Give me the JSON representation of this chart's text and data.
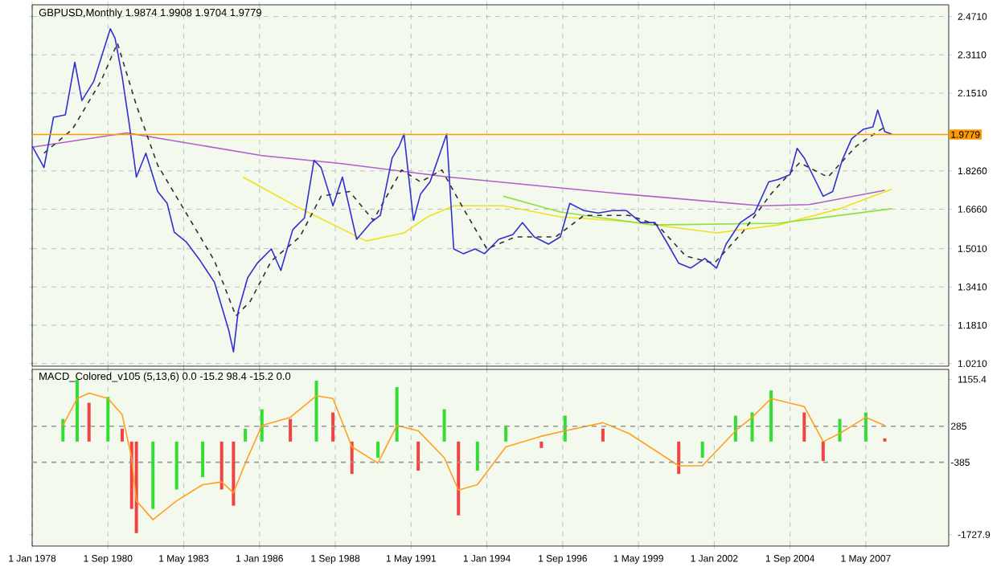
{
  "chart_data": [
    {
      "type": "line",
      "title": "GBPUSD,Monthly  1.9874 1.9908 1.9704 1.9779",
      "xlim": [
        "1978-01",
        "2010-04"
      ],
      "ylim": [
        1.01,
        2.52
      ],
      "xticks": [
        {
          "value": "1978-01",
          "label": null
        },
        {
          "value": "1980-09",
          "label": null
        },
        {
          "value": "1983-05",
          "label": null
        },
        {
          "value": "1986-01",
          "label": null
        },
        {
          "value": "1988-09",
          "label": null
        },
        {
          "value": "1991-05",
          "label": null
        },
        {
          "value": "1994-01",
          "label": null
        },
        {
          "value": "1996-09",
          "label": null
        },
        {
          "value": "1999-05",
          "label": null
        },
        {
          "value": "2002-01",
          "label": null
        },
        {
          "value": "2004-09",
          "label": null
        },
        {
          "value": "2007-05",
          "label": null
        }
      ],
      "yticks": [
        {
          "value": 1.021,
          "label": "1.0210"
        },
        {
          "value": 1.181,
          "label": "1.1810"
        },
        {
          "value": 1.341,
          "label": "1.3410"
        },
        {
          "value": 1.501,
          "label": "1.5010"
        },
        {
          "value": 1.666,
          "label": "1.6660"
        },
        {
          "value": 1.826,
          "label": "1.8260"
        },
        {
          "value": 2.151,
          "label": "2.1510"
        },
        {
          "value": 2.311,
          "label": "2.3110"
        },
        {
          "value": 2.471,
          "label": "2.4710"
        }
      ],
      "tick_labels": "y",
      "grid": true,
      "ref_lines": [
        {
          "axis": "y",
          "value": 1.9779,
          "label": "1.9779",
          "color": "#ff9900"
        }
      ],
      "series": [
        {
          "color": "#b060c8",
          "x": [
            "1978-01",
            "1981-05",
            "1986-02",
            "1988-11",
            "1992-09",
            "1998-10",
            "2003-09",
            "2005-05",
            "2008-01"
          ],
          "values": [
            1.925,
            1.985,
            1.89,
            1.857,
            1.8,
            1.73,
            1.68,
            1.685,
            1.745
          ]
        },
        {
          "color": "#f0e020",
          "x": [
            "1985-06",
            "1987-05",
            "1989-10",
            "1991-02",
            "1991-12",
            "1992-11",
            "1994-08",
            "1996-08",
            "1999-01",
            "2002-02",
            "2004-04",
            "2006-06",
            "2008-04"
          ],
          "values": [
            1.8,
            1.675,
            1.533,
            1.567,
            1.634,
            1.68,
            1.68,
            1.634,
            1.614,
            1.567,
            1.6,
            1.668,
            1.75
          ]
        },
        {
          "color": "#90e040",
          "x": [
            "1994-08",
            "1996-08",
            "1999-11",
            "2004-04",
            "2008-04"
          ],
          "values": [
            1.72,
            1.654,
            1.6,
            1.607,
            1.668
          ]
        },
        {
          "color": "#303030",
          "line_style": "dashed",
          "x": [
            "1978-06",
            "1979-06",
            "1980-06",
            "1981-01",
            "1981-09",
            "1982-06",
            "1983-06",
            "1984-06",
            "1985-03",
            "1985-09",
            "1986-06",
            "1987-06",
            "1988-03",
            "1989-03",
            "1990-01",
            "1991-01",
            "1991-09",
            "1992-06",
            "1993-03",
            "1994-01",
            "1995-01",
            "1996-06",
            "1997-06",
            "1999-01",
            "2000-01",
            "2001-01",
            "2002-01",
            "2003-01",
            "2004-01",
            "2005-01",
            "2006-01",
            "2007-01",
            "2008-01"
          ],
          "values": [
            1.9,
            2.0,
            2.2,
            2.36,
            2.1,
            1.85,
            1.65,
            1.45,
            1.22,
            1.28,
            1.45,
            1.55,
            1.72,
            1.74,
            1.62,
            1.83,
            1.78,
            1.83,
            1.67,
            1.5,
            1.55,
            1.55,
            1.64,
            1.64,
            1.6,
            1.47,
            1.44,
            1.57,
            1.73,
            1.86,
            1.8,
            1.93,
            2.01
          ]
        },
        {
          "color": "#3030d0",
          "x": [
            "1978-01",
            "1978-06",
            "1978-10",
            "1979-03",
            "1979-07",
            "1979-10",
            "1980-03",
            "1980-10",
            "1980-12",
            "1981-03",
            "1981-06",
            "1981-09",
            "1982-01",
            "1982-06",
            "1982-10",
            "1983-01",
            "1983-06",
            "1983-12",
            "1984-06",
            "1984-12",
            "1985-02",
            "1985-04",
            "1985-08",
            "1985-12",
            "1986-06",
            "1986-10",
            "1987-03",
            "1987-08",
            "1987-12",
            "1988-03",
            "1988-08",
            "1988-12",
            "1989-06",
            "1989-12",
            "1990-04",
            "1990-09",
            "1990-12",
            "1991-02",
            "1991-06",
            "1991-09",
            "1992-01",
            "1992-08",
            "1992-11",
            "1993-03",
            "1993-08",
            "1993-12",
            "1994-06",
            "1994-12",
            "1995-04",
            "1995-09",
            "1996-03",
            "1996-08",
            "1996-12",
            "1997-06",
            "1997-12",
            "1998-06",
            "1998-12",
            "1999-06",
            "1999-12",
            "2000-06",
            "2000-10",
            "2001-03",
            "2001-09",
            "2002-02",
            "2002-06",
            "2002-12",
            "2003-06",
            "2003-12",
            "2004-04",
            "2004-09",
            "2004-12",
            "2005-03",
            "2005-08",
            "2005-11",
            "2006-03",
            "2006-07",
            "2006-11",
            "2007-04",
            "2007-08",
            "2007-10",
            "2008-01",
            "2008-04"
          ],
          "values": [
            1.93,
            1.84,
            2.05,
            2.06,
            2.28,
            2.12,
            2.2,
            2.42,
            2.38,
            2.22,
            2.02,
            1.8,
            1.9,
            1.74,
            1.69,
            1.57,
            1.53,
            1.45,
            1.36,
            1.16,
            1.07,
            1.24,
            1.38,
            1.44,
            1.5,
            1.41,
            1.58,
            1.63,
            1.87,
            1.84,
            1.68,
            1.8,
            1.54,
            1.61,
            1.64,
            1.88,
            1.93,
            1.98,
            1.62,
            1.73,
            1.78,
            1.98,
            1.5,
            1.48,
            1.5,
            1.48,
            1.54,
            1.56,
            1.61,
            1.55,
            1.52,
            1.55,
            1.69,
            1.66,
            1.65,
            1.66,
            1.66,
            1.61,
            1.61,
            1.51,
            1.44,
            1.42,
            1.46,
            1.42,
            1.52,
            1.61,
            1.65,
            1.78,
            1.79,
            1.81,
            1.92,
            1.88,
            1.78,
            1.72,
            1.74,
            1.87,
            1.96,
            2.0,
            2.01,
            2.08,
            1.99,
            1.98
          ]
        }
      ]
    },
    {
      "type": "bar",
      "title": "MACD_Colored_v105 (5,13,6) 0.0 -15.2 98.4 -15.2 0.0",
      "xlim": [
        "1978-01",
        "2010-04"
      ],
      "ylim": [
        -1940,
        1340
      ],
      "xticks": [
        {
          "value": "1978-01",
          "label": "1 Jan 1978"
        },
        {
          "value": "1980-09",
          "label": "1 Sep 1980"
        },
        {
          "value": "1983-05",
          "label": "1 May 1983"
        },
        {
          "value": "1986-01",
          "label": "1 Jan 1986"
        },
        {
          "value": "1988-09",
          "label": "1 Sep 1988"
        },
        {
          "value": "1991-05",
          "label": "1 May 1991"
        },
        {
          "value": "1994-01",
          "label": "1 Jan 1994"
        },
        {
          "value": "1996-09",
          "label": "1 Sep 1996"
        },
        {
          "value": "1999-05",
          "label": "1 May 1999"
        },
        {
          "value": "2002-01",
          "label": "1 Jan 2002"
        },
        {
          "value": "2004-09",
          "label": "1 Sep 2004"
        },
        {
          "value": "2007-05",
          "label": "1 May 2007"
        }
      ],
      "yticks": [
        1155.4,
        -1727.9
      ],
      "grid": "x",
      "ref_lines": [
        {
          "axis": "y",
          "value": 285,
          "label": "285",
          "color": "#999999",
          "line_style": "dashed"
        },
        {
          "axis": "y",
          "value": -385,
          "label": "-385",
          "color": "#999999",
          "line_style": "dashed"
        }
      ],
      "series": [
        {
          "type": "bar",
          "x": [
            "1979-02",
            "1979-08",
            "1980-01",
            "1980-09",
            "1981-03",
            "1981-07",
            "1981-09",
            "1982-04",
            "1983-02",
            "1984-01",
            "1984-09",
            "1985-02",
            "1985-07",
            "1986-02",
            "1987-02",
            "1988-01",
            "1988-08",
            "1989-04",
            "1990-03",
            "1990-11",
            "1991-08",
            "1992-07",
            "1993-01",
            "1993-09",
            "1994-09",
            "1995-12",
            "1996-10",
            "1998-02",
            "1999-01",
            "2000-10",
            "2001-08",
            "2002-10",
            "2003-05",
            "2004-01",
            "2005-03",
            "2005-11",
            "2006-06",
            "2007-05",
            "2008-01"
          ],
          "values": [
            420,
            1150,
            720,
            830,
            240,
            -1250,
            -1700,
            -1250,
            -890,
            -660,
            -890,
            -1190,
            240,
            600,
            420,
            1130,
            540,
            -600,
            -300,
            1010,
            -540,
            600,
            -1370,
            -540,
            300,
            -120,
            480,
            240,
            0,
            -600,
            -300,
            480,
            540,
            950,
            540,
            -360,
            420,
            540,
            60
          ],
          "colors": [
            "#33dd33",
            "#33dd33",
            "#ee4444",
            "#33dd33",
            "#ee4444",
            "#ee4444",
            "#ee4444",
            "#33dd33",
            "#33dd33",
            "#33dd33",
            "#ee4444",
            "#ee4444",
            "#33dd33",
            "#33dd33",
            "#ee4444",
            "#33dd33",
            "#ee4444",
            "#ee4444",
            "#33dd33",
            "#33dd33",
            "#ee4444",
            "#33dd33",
            "#ee4444",
            "#33dd33",
            "#33dd33",
            "#ee4444",
            "#33dd33",
            "#ee4444",
            "#ee4444",
            "#ee4444",
            "#33dd33",
            "#33dd33",
            "#33dd33",
            "#33dd33",
            "#ee4444",
            "#ee4444",
            "#33dd33",
            "#33dd33",
            "#ee4444"
          ]
        },
        {
          "type": "line",
          "color": "#ffa020",
          "x": [
            "1979-02",
            "1979-08",
            "1980-01",
            "1980-09",
            "1981-03",
            "1981-07",
            "1981-09",
            "1982-04",
            "1983-02",
            "1984-01",
            "1984-09",
            "1985-02",
            "1985-07",
            "1986-02",
            "1987-02",
            "1988-01",
            "1988-08",
            "1989-04",
            "1990-03",
            "1990-11",
            "1991-08",
            "1992-07",
            "1993-01",
            "1993-09",
            "1994-09",
            "1995-12",
            "1996-10",
            "1998-02",
            "1999-01",
            "2000-10",
            "2001-08",
            "2002-10",
            "2003-05",
            "2004-01",
            "2005-03",
            "2005-11",
            "2006-06",
            "2007-05",
            "2008-01"
          ],
          "values": [
            300,
            800,
            900,
            800,
            500,
            -300,
            -1100,
            -1450,
            -1100,
            -800,
            -750,
            -950,
            -400,
            300,
            450,
            850,
            800,
            -100,
            -400,
            300,
            200,
            -300,
            -900,
            -800,
            -100,
            100,
            200,
            350,
            150,
            -450,
            -450,
            200,
            450,
            800,
            650,
            0,
            150,
            450,
            300
          ]
        }
      ]
    }
  ]
}
